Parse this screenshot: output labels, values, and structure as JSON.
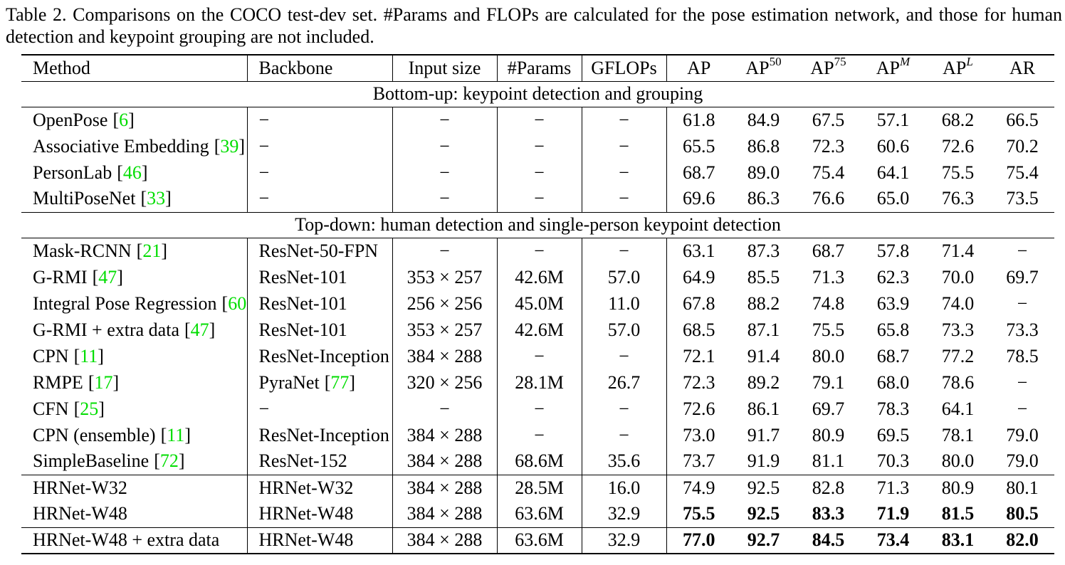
{
  "caption": "Table 2. Comparisons on the COCO test-dev set. #Params and FLOPs are calculated for the pose estimation network, and those for human detection and keypoint grouping are not included.",
  "punct": {
    "open": "[",
    "close": "]"
  },
  "colors": {
    "citation_green": "#00dd00",
    "text": "#000000",
    "rule": "#000000"
  },
  "dash": "−",
  "columns": {
    "method": "Method",
    "backbone": "Backbone",
    "input": "Input size",
    "params": "#Params",
    "gflops": "GFLOPs"
  },
  "metric_columns": [
    {
      "base": "AP",
      "sup": "",
      "italic": false
    },
    {
      "base": "AP",
      "sup": "50",
      "italic": false
    },
    {
      "base": "AP",
      "sup": "75",
      "italic": false
    },
    {
      "base": "AP",
      "sup": "M",
      "italic": true
    },
    {
      "base": "AP",
      "sup": "L",
      "italic": true
    },
    {
      "base": "AR",
      "sup": "",
      "italic": false
    }
  ],
  "sections": [
    {
      "header": "Bottom-up: keypoint detection and grouping",
      "groups": [
        {
          "rows": [
            {
              "method": {
                "label": "OpenPose",
                "cite": "6"
              },
              "backbone": {
                "label": "−"
              },
              "input": "−",
              "params": "−",
              "gflops": "−",
              "bold": false,
              "metrics": [
                "61.8",
                "84.9",
                "67.5",
                "57.1",
                "68.2",
                "66.5"
              ]
            },
            {
              "method": {
                "label": "Associative Embedding",
                "cite": "39"
              },
              "backbone": {
                "label": "−"
              },
              "input": "−",
              "params": "−",
              "gflops": "−",
              "bold": false,
              "metrics": [
                "65.5",
                "86.8",
                "72.3",
                "60.6",
                "72.6",
                "70.2"
              ]
            },
            {
              "method": {
                "label": "PersonLab",
                "cite": "46"
              },
              "backbone": {
                "label": "−"
              },
              "input": "−",
              "params": "−",
              "gflops": "−",
              "bold": false,
              "metrics": [
                "68.7",
                "89.0",
                "75.4",
                "64.1",
                "75.5",
                "75.4"
              ]
            },
            {
              "method": {
                "label": "MultiPoseNet",
                "cite": "33"
              },
              "backbone": {
                "label": "−"
              },
              "input": "−",
              "params": "−",
              "gflops": "−",
              "bold": false,
              "metrics": [
                "69.6",
                "86.3",
                "76.6",
                "65.0",
                "76.3",
                "73.5"
              ]
            }
          ]
        }
      ]
    },
    {
      "header": "Top-down: human detection and single-person keypoint detection",
      "groups": [
        {
          "rows": [
            {
              "method": {
                "label": "Mask-RCNN",
                "cite": "21"
              },
              "backbone": {
                "label": "ResNet-50-FPN"
              },
              "input": "−",
              "params": "−",
              "gflops": "−",
              "bold": false,
              "metrics": [
                "63.1",
                "87.3",
                "68.7",
                "57.8",
                "71.4",
                "−"
              ]
            },
            {
              "method": {
                "label": "G-RMI",
                "cite": "47"
              },
              "backbone": {
                "label": "ResNet-101"
              },
              "input": "353 × 257",
              "params": "42.6M",
              "gflops": "57.0",
              "bold": false,
              "metrics": [
                "64.9",
                "85.5",
                "71.3",
                "62.3",
                "70.0",
                "69.7"
              ]
            },
            {
              "method": {
                "label": "Integral Pose Regression",
                "cite": "60"
              },
              "backbone": {
                "label": "ResNet-101"
              },
              "input": "256 × 256",
              "params": "45.0M",
              "gflops": "11.0",
              "bold": false,
              "metrics": [
                "67.8",
                "88.2",
                "74.8",
                "63.9",
                "74.0",
                "−"
              ]
            },
            {
              "method": {
                "label": "G-RMI + extra data",
                "cite": "47"
              },
              "backbone": {
                "label": "ResNet-101"
              },
              "input": "353 × 257",
              "params": "42.6M",
              "gflops": "57.0",
              "bold": false,
              "metrics": [
                "68.5",
                "87.1",
                "75.5",
                "65.8",
                "73.3",
                "73.3"
              ]
            },
            {
              "method": {
                "label": "CPN",
                "cite": "11"
              },
              "backbone": {
                "label": "ResNet-Inception"
              },
              "input": "384 × 288",
              "params": "−",
              "gflops": "−",
              "bold": false,
              "metrics": [
                "72.1",
                "91.4",
                "80.0",
                "68.7",
                "77.2",
                "78.5"
              ]
            },
            {
              "method": {
                "label": "RMPE",
                "cite": "17"
              },
              "backbone": {
                "label": "PyraNet",
                "cite": "77"
              },
              "input": "320 × 256",
              "params": "28.1M",
              "gflops": "26.7",
              "bold": false,
              "metrics": [
                "72.3",
                "89.2",
                "79.1",
                "68.0",
                "78.6",
                "−"
              ]
            },
            {
              "method": {
                "label": "CFN",
                "cite": "25"
              },
              "backbone": {
                "label": "−"
              },
              "input": "−",
              "params": "−",
              "gflops": "−",
              "bold": false,
              "metrics": [
                "72.6",
                "86.1",
                "69.7",
                "78.3",
                "64.1",
                "−"
              ]
            },
            {
              "method": {
                "label": "CPN (ensemble)",
                "cite": "11"
              },
              "backbone": {
                "label": "ResNet-Inception"
              },
              "input": "384 × 288",
              "params": "−",
              "gflops": "−",
              "bold": false,
              "metrics": [
                "73.0",
                "91.7",
                "80.9",
                "69.5",
                "78.1",
                "79.0"
              ]
            },
            {
              "method": {
                "label": "SimpleBaseline",
                "cite": "72"
              },
              "backbone": {
                "label": "ResNet-152"
              },
              "input": "384 × 288",
              "params": "68.6M",
              "gflops": "35.6",
              "bold": false,
              "metrics": [
                "73.7",
                "91.9",
                "81.1",
                "70.3",
                "80.0",
                "79.0"
              ]
            }
          ]
        },
        {
          "rows": [
            {
              "method": {
                "label": "HRNet-W32"
              },
              "backbone": {
                "label": "HRNet-W32"
              },
              "input": "384 × 288",
              "params": "28.5M",
              "gflops": "16.0",
              "bold": false,
              "metrics": [
                "74.9",
                "92.5",
                "82.8",
                "71.3",
                "80.9",
                "80.1"
              ]
            },
            {
              "method": {
                "label": "HRNet-W48"
              },
              "backbone": {
                "label": "HRNet-W48"
              },
              "input": "384 × 288",
              "params": "63.6M",
              "gflops": "32.9",
              "bold": true,
              "metrics": [
                "75.5",
                "92.5",
                "83.3",
                "71.9",
                "81.5",
                "80.5"
              ]
            }
          ]
        },
        {
          "rows": [
            {
              "method": {
                "label": "HRNet-W48 + extra data"
              },
              "backbone": {
                "label": "HRNet-W48"
              },
              "input": "384 × 288",
              "params": "63.6M",
              "gflops": "32.9",
              "bold": true,
              "metrics": [
                "77.0",
                "92.7",
                "84.5",
                "73.4",
                "83.1",
                "82.0"
              ]
            }
          ]
        }
      ]
    }
  ]
}
